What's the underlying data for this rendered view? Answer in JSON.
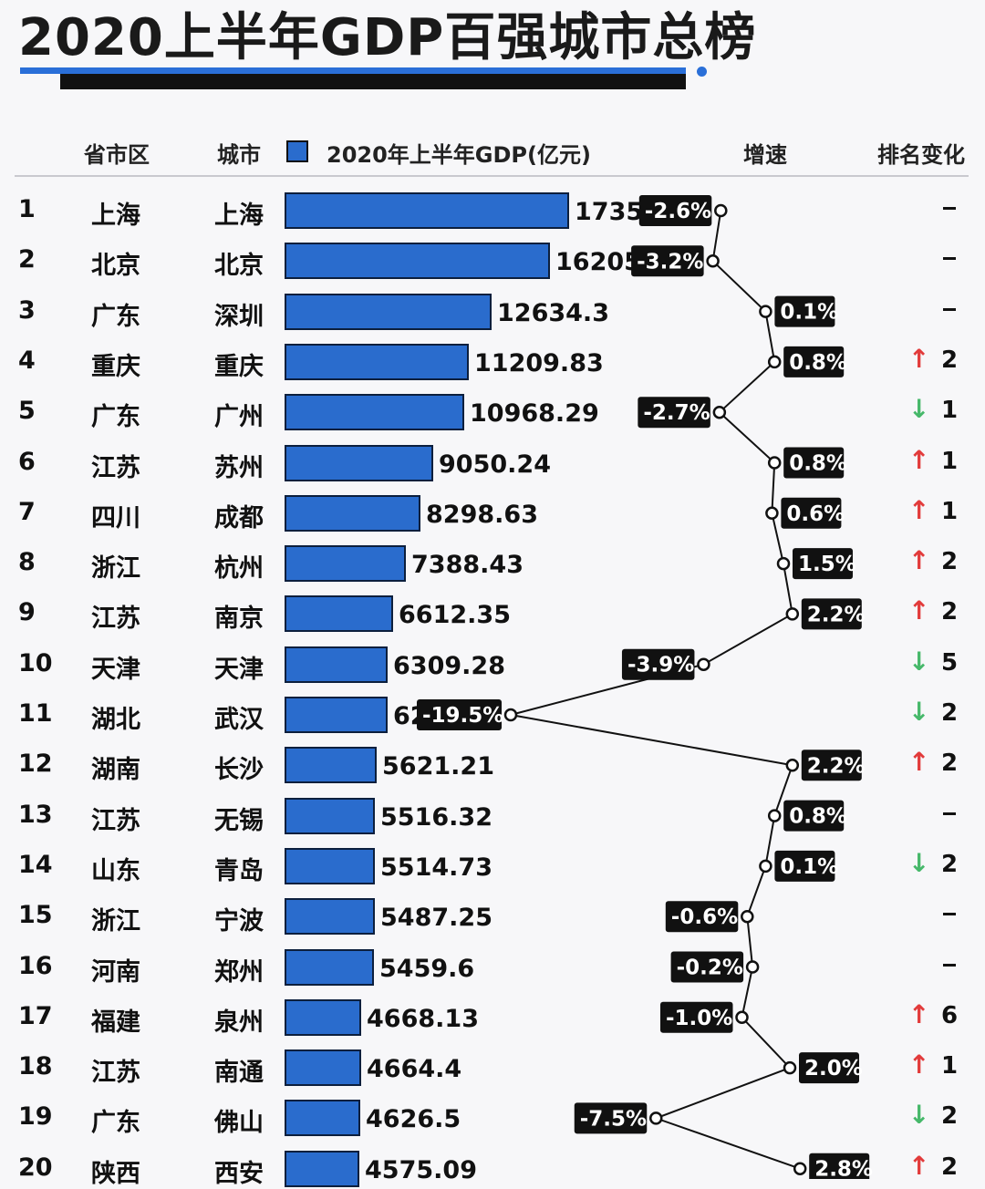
{
  "title": "2020上半年GDP百强城市总榜",
  "header": {
    "province": "省市区",
    "city": "城市",
    "gdp": "2020年上半年GDP(亿元)",
    "growth": "增速",
    "rank_change": "排名变化"
  },
  "colors": {
    "bar": "#2a6ccd",
    "up": "#e23b3b",
    "down": "#46b86a",
    "tag": "#111111"
  },
  "chart_data": {
    "type": "bar",
    "title": "2020上半年GDP百强城市总榜",
    "ylabel": "2020年上半年GDP(亿元)",
    "rows": [
      {
        "rank": "1",
        "province": "上海",
        "city": "上海",
        "gdp": 17356.8,
        "gdp_label": "17356.8",
        "growth": "-2.6%",
        "growth_value": -2.6,
        "change_dir": "none",
        "change": ""
      },
      {
        "rank": "2",
        "province": "北京",
        "city": "北京",
        "gdp": 16205.6,
        "gdp_label": "16205.6",
        "growth": "-3.2%",
        "growth_value": -3.2,
        "change_dir": "none",
        "change": ""
      },
      {
        "rank": "3",
        "province": "广东",
        "city": "深圳",
        "gdp": 12634.3,
        "gdp_label": "12634.3",
        "growth": "0.1%",
        "growth_value": 0.1,
        "change_dir": "none",
        "change": ""
      },
      {
        "rank": "4",
        "province": "重庆",
        "city": "重庆",
        "gdp": 11209.83,
        "gdp_label": "11209.83",
        "growth": "0.8%",
        "growth_value": 0.8,
        "change_dir": "up",
        "change": "2"
      },
      {
        "rank": "5",
        "province": "广东",
        "city": "广州",
        "gdp": 10968.29,
        "gdp_label": "10968.29",
        "growth": "-2.7%",
        "growth_value": -2.7,
        "change_dir": "down",
        "change": "1"
      },
      {
        "rank": "6",
        "province": "江苏",
        "city": "苏州",
        "gdp": 9050.24,
        "gdp_label": "9050.24",
        "growth": "0.8%",
        "growth_value": 0.8,
        "change_dir": "up",
        "change": "1"
      },
      {
        "rank": "7",
        "province": "四川",
        "city": "成都",
        "gdp": 8298.63,
        "gdp_label": "8298.63",
        "growth": "0.6%",
        "growth_value": 0.6,
        "change_dir": "up",
        "change": "1"
      },
      {
        "rank": "8",
        "province": "浙江",
        "city": "杭州",
        "gdp": 7388.43,
        "gdp_label": "7388.43",
        "growth": "1.5%",
        "growth_value": 1.5,
        "change_dir": "up",
        "change": "2"
      },
      {
        "rank": "9",
        "province": "江苏",
        "city": "南京",
        "gdp": 6612.35,
        "gdp_label": "6612.35",
        "growth": "2.2%",
        "growth_value": 2.2,
        "change_dir": "up",
        "change": "2"
      },
      {
        "rank": "10",
        "province": "天津",
        "city": "天津",
        "gdp": 6309.28,
        "gdp_label": "6309.28",
        "growth": "-3.9%",
        "growth_value": -3.9,
        "change_dir": "down",
        "change": "5"
      },
      {
        "rank": "11",
        "province": "湖北",
        "city": "武汉",
        "gdp": 6295,
        "gdp_label": "6295",
        "growth": "-19.5%",
        "growth_value": -19.5,
        "change_dir": "down",
        "change": "2"
      },
      {
        "rank": "12",
        "province": "湖南",
        "city": "长沙",
        "gdp": 5621.21,
        "gdp_label": "5621.21",
        "growth": "2.2%",
        "growth_value": 2.2,
        "change_dir": "up",
        "change": "2"
      },
      {
        "rank": "13",
        "province": "江苏",
        "city": "无锡",
        "gdp": 5516.32,
        "gdp_label": "5516.32",
        "growth": "0.8%",
        "growth_value": 0.8,
        "change_dir": "none",
        "change": ""
      },
      {
        "rank": "14",
        "province": "山东",
        "city": "青岛",
        "gdp": 5514.73,
        "gdp_label": "5514.73",
        "growth": "0.1%",
        "growth_value": 0.1,
        "change_dir": "down",
        "change": "2"
      },
      {
        "rank": "15",
        "province": "浙江",
        "city": "宁波",
        "gdp": 5487.25,
        "gdp_label": "5487.25",
        "growth": "-0.6%",
        "growth_value": -0.6,
        "change_dir": "none",
        "change": ""
      },
      {
        "rank": "16",
        "province": "河南",
        "city": "郑州",
        "gdp": 5459.6,
        "gdp_label": "5459.6",
        "growth": "-0.2%",
        "growth_value": -0.2,
        "change_dir": "none",
        "change": ""
      },
      {
        "rank": "17",
        "province": "福建",
        "city": "泉州",
        "gdp": 4668.13,
        "gdp_label": "4668.13",
        "growth": "-1.0%",
        "growth_value": -1.0,
        "change_dir": "up",
        "change": "6"
      },
      {
        "rank": "18",
        "province": "江苏",
        "city": "南通",
        "gdp": 4664.4,
        "gdp_label": "4664.4",
        "growth": "2.0%",
        "growth_value": 2.0,
        "change_dir": "up",
        "change": "1"
      },
      {
        "rank": "19",
        "province": "广东",
        "city": "佛山",
        "gdp": 4626.5,
        "gdp_label": "4626.5",
        "growth": "-7.5%",
        "growth_value": -7.5,
        "change_dir": "down",
        "change": "2"
      },
      {
        "rank": "20",
        "province": "陕西",
        "city": "西安",
        "gdp": 4575.09,
        "gdp_label": "4575.09",
        "growth": "2.8%",
        "growth_value": 2.8,
        "change_dir": "up",
        "change": "2"
      }
    ]
  }
}
